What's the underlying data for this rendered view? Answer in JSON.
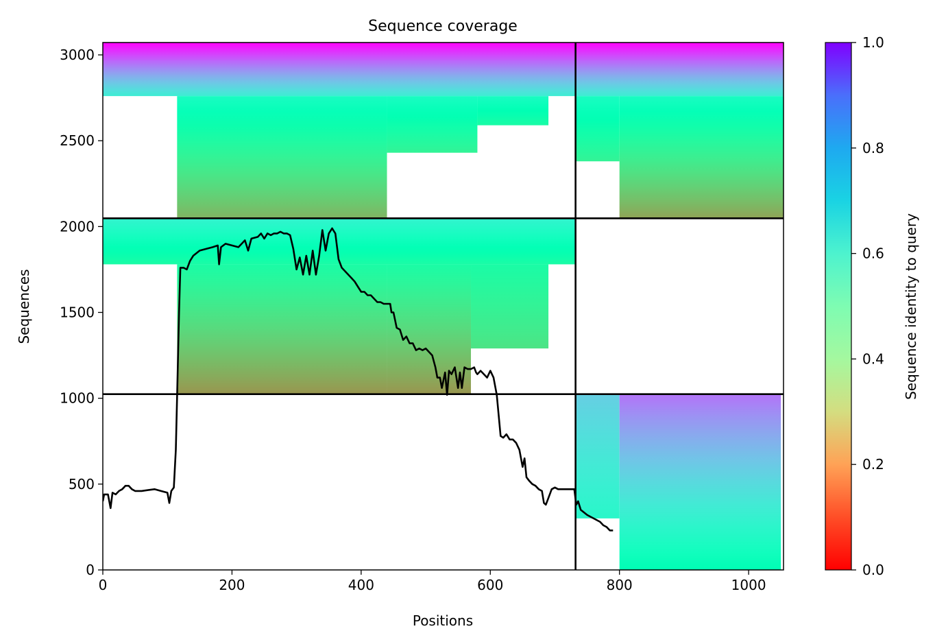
{
  "chart_data": {
    "type": "heatmap",
    "title": "Sequence coverage",
    "xlabel": "Positions",
    "ylabel": "Sequences",
    "xlim": [
      0,
      1054
    ],
    "ylim": [
      0,
      3072
    ],
    "xticks": [
      0,
      200,
      400,
      600,
      800,
      1000
    ],
    "yticks": [
      0,
      500,
      1000,
      1500,
      2000,
      2500,
      3000
    ],
    "grid": false,
    "colormap": "rainbow_r",
    "colorbar": {
      "label": "Sequence identity to query",
      "range": [
        0.0,
        1.0
      ],
      "ticks": [
        "0.0",
        "0.2",
        "0.4",
        "0.6",
        "0.8",
        "1.0"
      ]
    },
    "dividers": {
      "vertical_x": 732,
      "horizontal_y": [
        1024,
        2048
      ]
    },
    "blocks": [
      {
        "name": "top-left",
        "x": [
          0,
          732
        ],
        "y": [
          2048,
          3072
        ],
        "fills": [
          {
            "x": [
              115,
              440
            ],
            "y": [
              2048,
              2760
            ],
            "identity_bottom": 0.25,
            "identity_top": 0.55
          },
          {
            "x": [
              440,
              580
            ],
            "y": [
              2430,
              2760
            ],
            "identity_bottom": 0.4,
            "identity_top": 0.55
          },
          {
            "x": [
              580,
              690
            ],
            "y": [
              2590,
              2760
            ],
            "identity_bottom": 0.45,
            "identity_top": 0.55
          },
          {
            "x": [
              0,
              732
            ],
            "y": [
              2760,
              3072
            ],
            "identity_bottom": 0.62,
            "identity_top": 1.0
          }
        ]
      },
      {
        "name": "top-right",
        "x": [
          732,
          1054
        ],
        "y": [
          2048,
          3072
        ],
        "fills": [
          {
            "x": [
              732,
              800
            ],
            "y": [
              2380,
              2760
            ],
            "identity_bottom": 0.4,
            "identity_top": 0.55
          },
          {
            "x": [
              800,
              1054
            ],
            "y": [
              2048,
              2760
            ],
            "identity_bottom": 0.22,
            "identity_top": 0.55
          },
          {
            "x": [
              732,
              1054
            ],
            "y": [
              2760,
              3072
            ],
            "identity_bottom": 0.62,
            "identity_top": 1.0
          }
        ]
      },
      {
        "name": "middle-left",
        "x": [
          0,
          732
        ],
        "y": [
          1024,
          2048
        ],
        "fills": [
          {
            "x": [
              115,
              440
            ],
            "y": [
              1024,
              1780
            ],
            "identity_bottom": 0.2,
            "identity_top": 0.45
          },
          {
            "x": [
              440,
              570
            ],
            "y": [
              1024,
              1780
            ],
            "identity_bottom": 0.2,
            "identity_top": 0.45
          },
          {
            "x": [
              570,
              690
            ],
            "y": [
              1290,
              1780
            ],
            "identity_bottom": 0.35,
            "identity_top": 0.45
          },
          {
            "x": [
              0,
              732
            ],
            "y": [
              1780,
              2048
            ],
            "identity_bottom": 0.45,
            "identity_top": 0.6
          }
        ]
      },
      {
        "name": "bottom-right",
        "x": [
          732,
          1054
        ],
        "y": [
          0,
          1024
        ],
        "fills": [
          {
            "x": [
              732,
              800
            ],
            "y": [
              300,
              1024
            ],
            "identity_bottom": 0.58,
            "identity_top": 0.7
          },
          {
            "x": [
              800,
              1050
            ],
            "y": [
              0,
              1024
            ],
            "identity_bottom": 0.5,
            "identity_top": 0.85
          }
        ]
      }
    ],
    "series": [
      {
        "type": "line",
        "color": "#000000",
        "points": [
          [
            0,
            400
          ],
          [
            2,
            440
          ],
          [
            8,
            440
          ],
          [
            12,
            360
          ],
          [
            15,
            450
          ],
          [
            20,
            440
          ],
          [
            25,
            460
          ],
          [
            30,
            470
          ],
          [
            35,
            490
          ],
          [
            40,
            490
          ],
          [
            45,
            470
          ],
          [
            50,
            460
          ],
          [
            60,
            460
          ],
          [
            70,
            465
          ],
          [
            80,
            470
          ],
          [
            90,
            460
          ],
          [
            100,
            450
          ],
          [
            103,
            390
          ],
          [
            106,
            460
          ],
          [
            110,
            480
          ],
          [
            113,
            700
          ],
          [
            115,
            1000
          ],
          [
            118,
            1500
          ],
          [
            120,
            1760
          ],
          [
            125,
            1760
          ],
          [
            130,
            1750
          ],
          [
            135,
            1800
          ],
          [
            140,
            1830
          ],
          [
            150,
            1860
          ],
          [
            160,
            1870
          ],
          [
            170,
            1880
          ],
          [
            178,
            1890
          ],
          [
            180,
            1780
          ],
          [
            183,
            1880
          ],
          [
            190,
            1900
          ],
          [
            200,
            1890
          ],
          [
            210,
            1880
          ],
          [
            215,
            1900
          ],
          [
            220,
            1920
          ],
          [
            225,
            1860
          ],
          [
            230,
            1930
          ],
          [
            240,
            1940
          ],
          [
            245,
            1960
          ],
          [
            250,
            1930
          ],
          [
            255,
            1960
          ],
          [
            260,
            1950
          ],
          [
            265,
            1960
          ],
          [
            270,
            1960
          ],
          [
            275,
            1970
          ],
          [
            280,
            1960
          ],
          [
            285,
            1960
          ],
          [
            290,
            1950
          ],
          [
            295,
            1870
          ],
          [
            300,
            1750
          ],
          [
            305,
            1820
          ],
          [
            310,
            1720
          ],
          [
            315,
            1830
          ],
          [
            320,
            1720
          ],
          [
            325,
            1860
          ],
          [
            330,
            1720
          ],
          [
            335,
            1830
          ],
          [
            340,
            1980
          ],
          [
            345,
            1860
          ],
          [
            350,
            1960
          ],
          [
            355,
            1990
          ],
          [
            360,
            1960
          ],
          [
            365,
            1810
          ],
          [
            370,
            1760
          ],
          [
            375,
            1740
          ],
          [
            380,
            1720
          ],
          [
            385,
            1700
          ],
          [
            390,
            1680
          ],
          [
            395,
            1650
          ],
          [
            400,
            1620
          ],
          [
            405,
            1620
          ],
          [
            410,
            1600
          ],
          [
            415,
            1600
          ],
          [
            420,
            1580
          ],
          [
            425,
            1560
          ],
          [
            430,
            1560
          ],
          [
            435,
            1550
          ],
          [
            440,
            1550
          ],
          [
            445,
            1550
          ],
          [
            447,
            1500
          ],
          [
            450,
            1500
          ],
          [
            455,
            1410
          ],
          [
            460,
            1400
          ],
          [
            465,
            1340
          ],
          [
            470,
            1360
          ],
          [
            475,
            1320
          ],
          [
            480,
            1320
          ],
          [
            485,
            1280
          ],
          [
            490,
            1290
          ],
          [
            495,
            1280
          ],
          [
            500,
            1290
          ],
          [
            505,
            1270
          ],
          [
            510,
            1250
          ],
          [
            515,
            1180
          ],
          [
            518,
            1120
          ],
          [
            522,
            1120
          ],
          [
            525,
            1060
          ],
          [
            530,
            1150
          ],
          [
            533,
            1020
          ],
          [
            536,
            1160
          ],
          [
            540,
            1140
          ],
          [
            545,
            1180
          ],
          [
            550,
            1060
          ],
          [
            553,
            1150
          ],
          [
            556,
            1060
          ],
          [
            560,
            1180
          ],
          [
            565,
            1170
          ],
          [
            570,
            1170
          ],
          [
            575,
            1180
          ],
          [
            578,
            1150
          ],
          [
            580,
            1140
          ],
          [
            585,
            1160
          ],
          [
            590,
            1140
          ],
          [
            595,
            1120
          ],
          [
            600,
            1160
          ],
          [
            605,
            1120
          ],
          [
            610,
            1020
          ],
          [
            613,
            900
          ],
          [
            616,
            780
          ],
          [
            620,
            770
          ],
          [
            625,
            790
          ],
          [
            630,
            760
          ],
          [
            635,
            760
          ],
          [
            640,
            740
          ],
          [
            645,
            700
          ],
          [
            650,
            600
          ],
          [
            653,
            650
          ],
          [
            656,
            540
          ],
          [
            660,
            520
          ],
          [
            665,
            500
          ],
          [
            670,
            490
          ],
          [
            675,
            470
          ],
          [
            680,
            460
          ],
          [
            683,
            390
          ],
          [
            686,
            380
          ],
          [
            690,
            420
          ],
          [
            695,
            470
          ],
          [
            700,
            480
          ],
          [
            705,
            470
          ],
          [
            710,
            470
          ],
          [
            720,
            470
          ],
          [
            730,
            470
          ],
          [
            733,
            380
          ],
          [
            736,
            400
          ],
          [
            740,
            350
          ],
          [
            750,
            320
          ],
          [
            760,
            300
          ],
          [
            770,
            280
          ],
          [
            775,
            260
          ],
          [
            780,
            250
          ],
          [
            785,
            230
          ],
          [
            790,
            230
          ]
        ]
      }
    ]
  }
}
